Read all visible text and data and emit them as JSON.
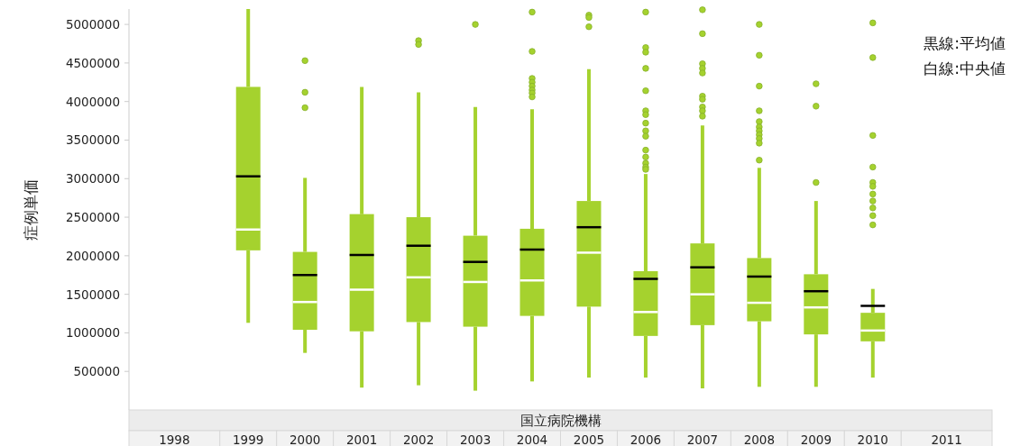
{
  "chart_data": {
    "type": "box",
    "ylabel": "症例単価",
    "xlabel": "国立病院機構",
    "color": "#a5d22e",
    "categories": [
      "1998",
      "1999",
      "2000",
      "2001",
      "2002",
      "2003",
      "2004",
      "2005",
      "2006",
      "2007",
      "2008",
      "2009",
      "2010",
      "2011"
    ],
    "ylim": [
      0,
      5200000
    ],
    "yticks": [
      500000,
      1000000,
      1500000,
      2000000,
      2500000,
      3000000,
      3500000,
      4000000,
      4500000,
      5000000
    ],
    "annotations": [
      "黒線:平均値",
      "白線:中央値"
    ],
    "boxes": [
      null,
      {
        "low": 1130000,
        "q1": 2070000,
        "median": 2340000,
        "q3": 4190000,
        "high": 5200000,
        "mean": 3030000
      },
      {
        "low": 740000,
        "q1": 1040000,
        "median": 1400000,
        "q3": 2050000,
        "high": 3010000,
        "mean": 1750000,
        "outliers": [
          4530000,
          4120000,
          3920000
        ]
      },
      {
        "low": 290000,
        "q1": 1020000,
        "median": 1560000,
        "q3": 2540000,
        "high": 4190000,
        "mean": 2010000
      },
      {
        "low": 320000,
        "q1": 1140000,
        "median": 1720000,
        "q3": 2500000,
        "high": 4120000,
        "mean": 2130000,
        "outliers": [
          4790000,
          4740000
        ]
      },
      {
        "low": 250000,
        "q1": 1080000,
        "median": 1660000,
        "q3": 2260000,
        "high": 3930000,
        "mean": 1920000,
        "outliers": [
          5000000
        ]
      },
      {
        "low": 370000,
        "q1": 1220000,
        "median": 1680000,
        "q3": 2350000,
        "high": 3900000,
        "mean": 2080000,
        "outliers": [
          5160000,
          4650000,
          4300000,
          4250000,
          4200000,
          4150000,
          4110000,
          4060000
        ]
      },
      {
        "low": 420000,
        "q1": 1340000,
        "median": 2040000,
        "q3": 2710000,
        "high": 4420000,
        "mean": 2370000,
        "outliers": [
          5120000,
          5090000,
          4970000
        ]
      },
      {
        "low": 420000,
        "q1": 960000,
        "median": 1270000,
        "q3": 1800000,
        "high": 3060000,
        "mean": 1700000,
        "outliers": [
          5160000,
          4700000,
          4640000,
          4430000,
          4140000,
          3880000,
          3830000,
          3720000,
          3620000,
          3550000,
          3370000,
          3280000,
          3200000,
          3150000,
          3120000
        ]
      },
      {
        "low": 280000,
        "q1": 1100000,
        "median": 1500000,
        "q3": 2160000,
        "high": 3690000,
        "mean": 1850000,
        "outliers": [
          5190000,
          4880000,
          4490000,
          4430000,
          4370000,
          4070000,
          4030000,
          3930000,
          3880000,
          3810000
        ]
      },
      {
        "low": 300000,
        "q1": 1150000,
        "median": 1390000,
        "q3": 1970000,
        "high": 3140000,
        "mean": 1730000,
        "outliers": [
          5000000,
          4600000,
          4200000,
          3880000,
          3740000,
          3670000,
          3620000,
          3570000,
          3520000,
          3460000,
          3240000
        ]
      },
      {
        "low": 300000,
        "q1": 980000,
        "median": 1330000,
        "q3": 1760000,
        "high": 2710000,
        "mean": 1540000,
        "outliers": [
          4230000,
          3940000,
          2950000
        ]
      },
      {
        "low": 420000,
        "q1": 890000,
        "median": 1030000,
        "q3": 1260000,
        "high": 1570000,
        "mean": 1350000,
        "outliers": [
          5020000,
          4570000,
          3560000,
          3150000,
          2950000,
          2900000,
          2800000,
          2710000,
          2620000,
          2520000,
          2400000
        ]
      },
      null
    ]
  }
}
